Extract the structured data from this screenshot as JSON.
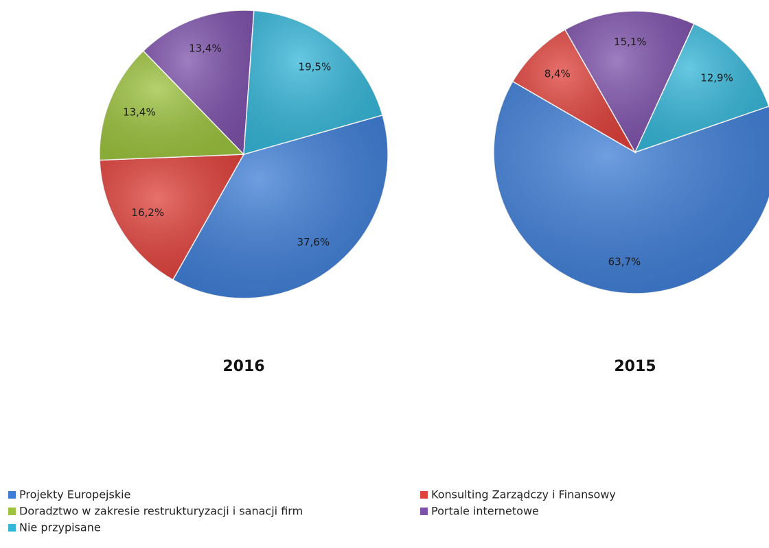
{
  "chart_data": [
    {
      "type": "pie",
      "title": "2016",
      "categories": [
        "Projekty Europejskie",
        "Konsulting Zarządczy i Finansowy",
        "Doradztwo w zakresie restrukturyzacji i sanacji firm",
        "Portale internetowe",
        "Nie przypisane"
      ],
      "colors": [
        "#3f7ed6",
        "#e0423c",
        "#9cc23e",
        "#7e52ab",
        "#35b6d8"
      ],
      "values": [
        37.6,
        16.2,
        13.4,
        13.4,
        19.5
      ],
      "value_labels": [
        "37,6%",
        "16,2%",
        "13,4%",
        "13,4%",
        "19,5%"
      ]
    },
    {
      "type": "pie",
      "title": "2015",
      "colors": [
        "#3f7ed6",
        "#e0423c",
        "#7e52ab",
        "#35b6d8"
      ],
      "values": [
        63.7,
        8.4,
        15.1,
        12.9
      ],
      "value_labels": [
        "63,7%",
        "8,4%",
        "15,1%",
        "12,9%"
      ]
    }
  ]
}
